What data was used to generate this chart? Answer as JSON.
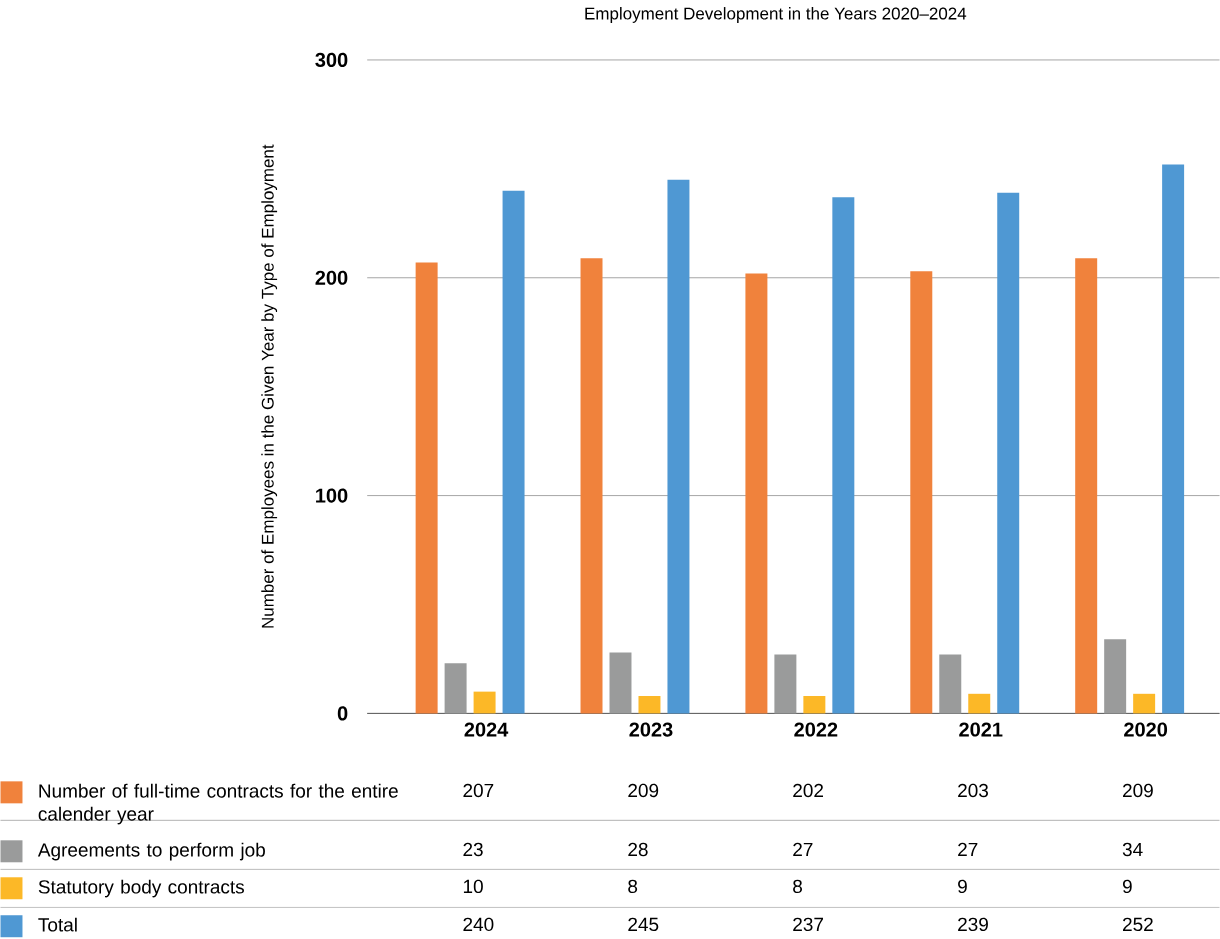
{
  "chart_data": {
    "type": "bar",
    "title": "Employment Development in the Years 2020–2024",
    "ylabel": "Number of Employees in the Given Year by Type of Employment",
    "categories": [
      "2024",
      "2023",
      "2022",
      "2021",
      "2020"
    ],
    "series": [
      {
        "name": "Number of full-time contracts for the entire calender  year",
        "color": "#f0823c",
        "values": [
          207,
          209,
          202,
          203,
          209
        ]
      },
      {
        "name": "Agreements to perform job",
        "color": "#9a9b9b",
        "values": [
          23,
          28,
          27,
          27,
          34
        ]
      },
      {
        "name": "Statutory body contracts",
        "color": "#fcb827",
        "values": [
          10,
          8,
          8,
          9,
          9
        ]
      },
      {
        "name": "Total",
        "color": "#4f98d3",
        "values": [
          240,
          245,
          237,
          239,
          252
        ]
      }
    ],
    "ylim": [
      0,
      300
    ],
    "yticks": [
      0,
      100,
      200,
      300
    ],
    "grid": "y",
    "legend": "bottom",
    "data_labels": true
  }
}
